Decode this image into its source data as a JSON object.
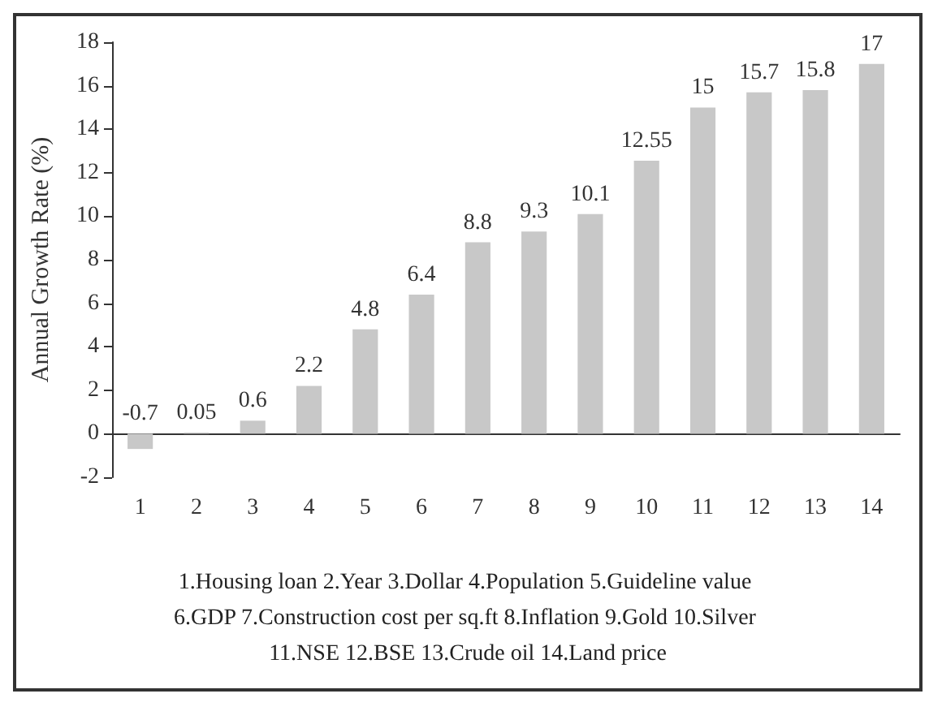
{
  "chart_data": {
    "type": "bar",
    "ylabel": "Annual Growth Rate (%)",
    "categories": [
      "1",
      "2",
      "3",
      "4",
      "5",
      "6",
      "7",
      "8",
      "9",
      "10",
      "11",
      "12",
      "13",
      "14"
    ],
    "values": [
      -0.7,
      0.05,
      0.6,
      2.2,
      4.8,
      6.4,
      8.8,
      9.3,
      10.1,
      12.55,
      15,
      15.7,
      15.8,
      17
    ],
    "color": "#c8c8c8",
    "ylim": [
      -2,
      18
    ],
    "yticks": [
      -2,
      0,
      2,
      4,
      6,
      8,
      10,
      12,
      14,
      16,
      18
    ],
    "data_labels": true,
    "annotations": [
      "1.Housing loan 2.Year 3.Dollar 4.Population 5.Guideline value 6.GDP 7.Construction cost per sq.ft 8.Inflation 9.Gold 10.Silver 11.NSE 12.BSE 13.Crude oil 14.Land price"
    ]
  }
}
